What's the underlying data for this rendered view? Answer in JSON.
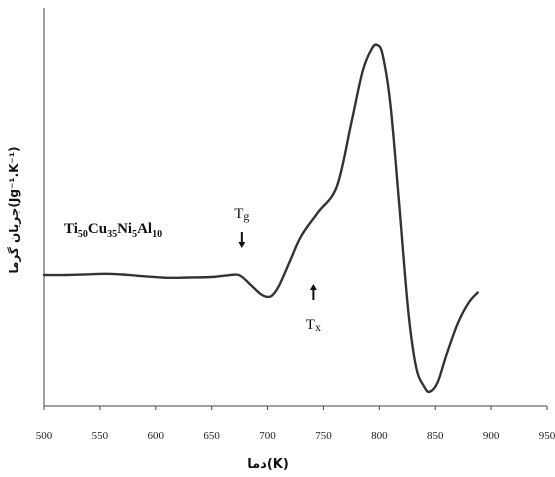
{
  "chart_data": {
    "type": "line",
    "title": "",
    "xlabel": "دما(K)",
    "ylabel": "جریان گرما(Jg⁻¹.K⁻¹)",
    "xlim": [
      500,
      950
    ],
    "x_ticks": [
      "500",
      "550",
      "600",
      "650",
      "700",
      "750",
      "800",
      "850",
      "900",
      "950"
    ],
    "grid": false,
    "legend": "none",
    "line_color": "#333333",
    "sample_label": {
      "parts": [
        {
          "text": "Ti",
          "sub": false
        },
        {
          "text": "50",
          "sub": true
        },
        {
          "text": "Cu",
          "sub": false
        },
        {
          "text": "35",
          "sub": true
        },
        {
          "text": "Ni",
          "sub": false
        },
        {
          "text": "5",
          "sub": true
        },
        {
          "text": "Al",
          "sub": false
        },
        {
          "text": "10",
          "sub": true
        }
      ]
    },
    "annotations": [
      {
        "label": "Tg",
        "x": 677,
        "arrow": "down"
      },
      {
        "label": "Tx",
        "x": 741,
        "arrow": "up"
      }
    ],
    "series": [
      {
        "x": [
          500,
          520,
          540,
          555,
          570,
          590,
          610,
          630,
          650,
          665,
          675,
          685,
          695,
          703,
          710,
          720,
          730,
          745,
          762,
          775,
          785,
          793,
          798,
          803,
          810,
          818,
          826,
          833,
          840,
          845,
          852,
          860,
          870,
          880,
          888
        ],
        "y": [
          -0.2,
          -0.2,
          -0.17,
          -0.15,
          -0.18,
          -0.25,
          -0.31,
          -0.3,
          -0.28,
          -0.21,
          -0.21,
          -0.6,
          -1.0,
          -1.05,
          -0.65,
          0.35,
          1.35,
          2.3,
          3.35,
          5.9,
          7.95,
          8.83,
          9.0,
          8.6,
          6.6,
          2.5,
          -1.7,
          -3.9,
          -4.65,
          -4.87,
          -4.5,
          -3.4,
          -2.15,
          -1.3,
          -0.9
        ]
      }
    ]
  }
}
